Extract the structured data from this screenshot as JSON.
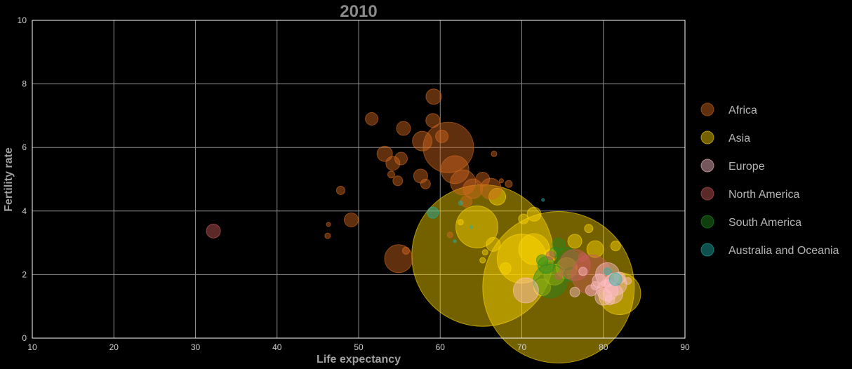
{
  "chart_data": {
    "type": "scatter",
    "title": "2010",
    "xlabel": "Life expectancy",
    "ylabel": "Fertility rate",
    "xlim": [
      10,
      90
    ],
    "ylim": [
      0,
      10
    ],
    "xticks": [
      10,
      20,
      30,
      40,
      50,
      60,
      70,
      80,
      90
    ],
    "yticks": [
      0,
      2,
      4,
      6,
      8,
      10
    ],
    "grid": true,
    "legend_position": "right",
    "series": [
      {
        "name": "Africa",
        "color": "#d2691e",
        "points": [
          {
            "x": 61,
            "y": 6.0,
            "r": 36
          },
          {
            "x": 59.2,
            "y": 7.6,
            "r": 11
          },
          {
            "x": 51.6,
            "y": 6.9,
            "r": 9
          },
          {
            "x": 55.5,
            "y": 6.6,
            "r": 10
          },
          {
            "x": 59.1,
            "y": 6.85,
            "r": 10
          },
          {
            "x": 57.8,
            "y": 6.2,
            "r": 14
          },
          {
            "x": 60.2,
            "y": 6.35,
            "r": 9
          },
          {
            "x": 53.2,
            "y": 5.8,
            "r": 11
          },
          {
            "x": 54.2,
            "y": 5.5,
            "r": 10
          },
          {
            "x": 55.2,
            "y": 5.65,
            "r": 9
          },
          {
            "x": 61.8,
            "y": 5.3,
            "r": 20
          },
          {
            "x": 62.8,
            "y": 4.9,
            "r": 18
          },
          {
            "x": 57.6,
            "y": 5.1,
            "r": 10
          },
          {
            "x": 58.2,
            "y": 4.85,
            "r": 7
          },
          {
            "x": 64,
            "y": 4.7,
            "r": 14
          },
          {
            "x": 65.2,
            "y": 5.0,
            "r": 10
          },
          {
            "x": 66.2,
            "y": 4.7,
            "r": 15
          },
          {
            "x": 54.8,
            "y": 4.95,
            "r": 7
          },
          {
            "x": 47.8,
            "y": 4.65,
            "r": 6
          },
          {
            "x": 49.1,
            "y": 3.72,
            "r": 10
          },
          {
            "x": 46.3,
            "y": 3.58,
            "r": 3
          },
          {
            "x": 46.2,
            "y": 3.22,
            "r": 4
          },
          {
            "x": 54.9,
            "y": 2.5,
            "r": 20
          },
          {
            "x": 55.8,
            "y": 2.75,
            "r": 5
          },
          {
            "x": 66.6,
            "y": 5.8,
            "r": 4
          },
          {
            "x": 68.4,
            "y": 4.85,
            "r": 5
          },
          {
            "x": 67.5,
            "y": 4.95,
            "r": 3
          },
          {
            "x": 61.2,
            "y": 3.25,
            "r": 4
          },
          {
            "x": 54.0,
            "y": 5.15,
            "r": 5
          },
          {
            "x": 63.2,
            "y": 4.3,
            "r": 8
          }
        ]
      },
      {
        "name": "Asia",
        "color": "#ffd700",
        "points": [
          {
            "x": 65.2,
            "y": 2.6,
            "r": 101
          },
          {
            "x": 74.5,
            "y": 1.6,
            "r": 108
          },
          {
            "x": 64.5,
            "y": 3.5,
            "r": 30
          },
          {
            "x": 70,
            "y": 2.5,
            "r": 35
          },
          {
            "x": 71.5,
            "y": 2.8,
            "r": 22
          },
          {
            "x": 67,
            "y": 4.45,
            "r": 12
          },
          {
            "x": 71.5,
            "y": 3.9,
            "r": 10
          },
          {
            "x": 70.2,
            "y": 3.75,
            "r": 7
          },
          {
            "x": 74,
            "y": 2.0,
            "r": 15
          },
          {
            "x": 78.2,
            "y": 3.45,
            "r": 6
          },
          {
            "x": 76.5,
            "y": 3.05,
            "r": 10
          },
          {
            "x": 81.5,
            "y": 2.9,
            "r": 7
          },
          {
            "x": 82,
            "y": 1.4,
            "r": 30
          },
          {
            "x": 79,
            "y": 2.8,
            "r": 12
          },
          {
            "x": 72.5,
            "y": 1.6,
            "r": 12
          },
          {
            "x": 75.5,
            "y": 2.2,
            "r": 15
          },
          {
            "x": 66.5,
            "y": 2.95,
            "r": 10
          },
          {
            "x": 65.2,
            "y": 2.45,
            "r": 4
          },
          {
            "x": 65.5,
            "y": 2.7,
            "r": 4
          },
          {
            "x": 62.5,
            "y": 3.65,
            "r": 4
          },
          {
            "x": 68,
            "y": 2.2,
            "r": 8
          },
          {
            "x": 73.5,
            "y": 2.6,
            "r": 9
          }
        ]
      },
      {
        "name": "Europe",
        "color": "#ffc0cb",
        "points": [
          {
            "x": 70.5,
            "y": 1.5,
            "r": 18
          },
          {
            "x": 80.5,
            "y": 2.0,
            "r": 17
          },
          {
            "x": 81.5,
            "y": 1.7,
            "r": 16
          },
          {
            "x": 80.5,
            "y": 1.5,
            "r": 15
          },
          {
            "x": 81.2,
            "y": 1.4,
            "r": 14
          },
          {
            "x": 79.5,
            "y": 1.8,
            "r": 10
          },
          {
            "x": 78.5,
            "y": 1.5,
            "r": 8
          },
          {
            "x": 76.5,
            "y": 1.45,
            "r": 7
          },
          {
            "x": 80,
            "y": 1.3,
            "r": 12
          },
          {
            "x": 82,
            "y": 1.9,
            "r": 8
          },
          {
            "x": 77.5,
            "y": 2.1,
            "r": 6
          },
          {
            "x": 79,
            "y": 1.65,
            "r": 6
          },
          {
            "x": 83,
            "y": 1.8,
            "r": 5
          },
          {
            "x": 80.8,
            "y": 1.2,
            "r": 7
          }
        ]
      },
      {
        "name": "North America",
        "color": "#cd5c5c",
        "points": [
          {
            "x": 78.5,
            "y": 2.0,
            "r": 28
          },
          {
            "x": 76.5,
            "y": 2.3,
            "r": 22
          },
          {
            "x": 81,
            "y": 1.65,
            "r": 12
          },
          {
            "x": 73.5,
            "y": 2.6,
            "r": 6
          },
          {
            "x": 32.2,
            "y": 3.37,
            "r": 10
          },
          {
            "x": 74.5,
            "y": 1.95,
            "r": 5
          },
          {
            "x": 77.5,
            "y": 2.55,
            "r": 6
          }
        ]
      },
      {
        "name": "South America",
        "color": "#228b22",
        "points": [
          {
            "x": 73.5,
            "y": 1.8,
            "r": 24
          },
          {
            "x": 75.5,
            "y": 2.5,
            "r": 16
          },
          {
            "x": 74.5,
            "y": 2.95,
            "r": 9
          },
          {
            "x": 73,
            "y": 2.3,
            "r": 12
          },
          {
            "x": 76,
            "y": 2.0,
            "r": 10
          },
          {
            "x": 74,
            "y": 2.7,
            "r": 7
          },
          {
            "x": 72.5,
            "y": 2.45,
            "r": 8
          }
        ]
      },
      {
        "name": "Australia and Oceania",
        "color": "#20b2aa",
        "points": [
          {
            "x": 59.1,
            "y": 3.95,
            "r": 8
          },
          {
            "x": 62.5,
            "y": 4.25,
            "r": 3
          },
          {
            "x": 63.8,
            "y": 3.5,
            "r": 2
          },
          {
            "x": 72.6,
            "y": 4.35,
            "r": 2
          },
          {
            "x": 61.8,
            "y": 3.05,
            "r": 2
          },
          {
            "x": 81.5,
            "y": 1.85,
            "r": 9
          },
          {
            "x": 80.5,
            "y": 2.1,
            "r": 5
          }
        ]
      }
    ]
  }
}
